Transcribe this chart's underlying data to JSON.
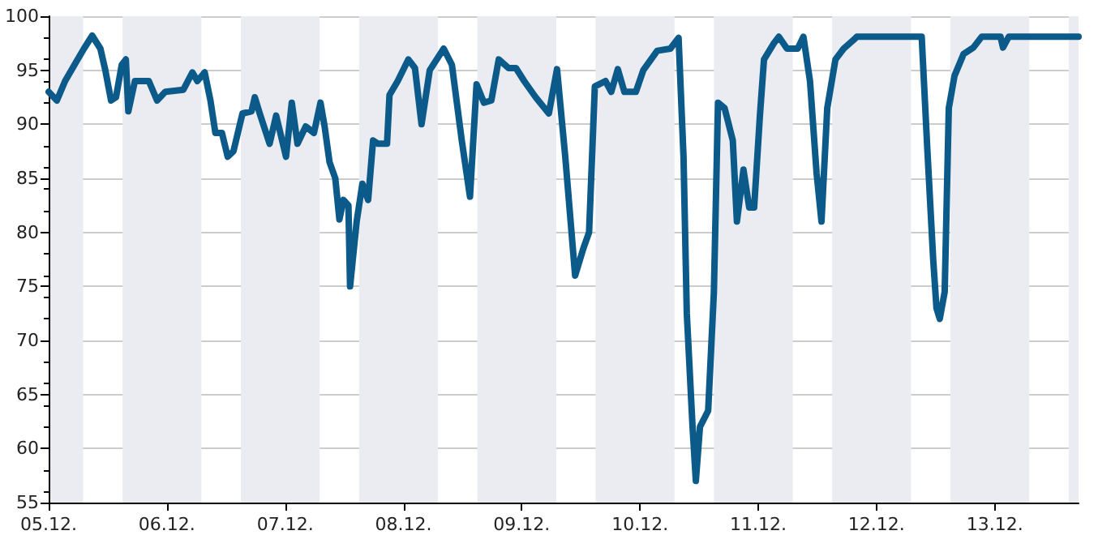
{
  "chart_data": {
    "type": "line",
    "xlim": [
      "--12-05T00:00",
      "--12-13T17:00"
    ],
    "xticks": [
      {
        "value": "--12-05",
        "label": "05.12."
      },
      {
        "value": "--12-06",
        "label": "06.12."
      },
      {
        "value": "--12-07",
        "label": "07.12."
      },
      {
        "value": "--12-08",
        "label": "08.12."
      },
      {
        "value": "--12-09",
        "label": "09.12."
      },
      {
        "value": "--12-10",
        "label": "10.12."
      },
      {
        "value": "--12-11",
        "label": "11.12."
      },
      {
        "value": "--12-12",
        "label": "12.12."
      },
      {
        "value": "--12-13",
        "label": "13.12."
      }
    ],
    "ylim": [
      55,
      100
    ],
    "yticks": [
      55,
      60,
      65,
      70,
      75,
      80,
      85,
      90,
      95,
      100
    ],
    "grid": true,
    "marker": "none",
    "line_style": "solid",
    "bands": [
      {
        "axis": "x",
        "from": "--12-05T00:00",
        "to": "--12-05T07:00",
        "color": "#eaecf2"
      },
      {
        "axis": "x",
        "from": "--12-05T15:00",
        "to": "--12-06T07:00",
        "color": "#eaecf2"
      },
      {
        "axis": "x",
        "from": "--12-06T15:00",
        "to": "--12-07T07:00",
        "color": "#eaecf2"
      },
      {
        "axis": "x",
        "from": "--12-07T15:00",
        "to": "--12-08T07:00",
        "color": "#eaecf2"
      },
      {
        "axis": "x",
        "from": "--12-08T15:00",
        "to": "--12-09T07:00",
        "color": "#eaecf2"
      },
      {
        "axis": "x",
        "from": "--12-09T15:00",
        "to": "--12-10T07:00",
        "color": "#eaecf2"
      },
      {
        "axis": "x",
        "from": "--12-10T15:00",
        "to": "--12-11T07:00",
        "color": "#eaecf2"
      },
      {
        "axis": "x",
        "from": "--12-11T15:00",
        "to": "--12-12T07:00",
        "color": "#eaecf2"
      },
      {
        "axis": "x",
        "from": "--12-12T15:00",
        "to": "--12-13T07:00",
        "color": "#eaecf2"
      },
      {
        "axis": "x",
        "from": "--12-13T15:00",
        "to": "--12-13T17:00",
        "color": "#eaecf2"
      }
    ],
    "x": [
      "--12-05T00:00",
      "--12-05T01:40",
      "--12-05T03:20",
      "--12-05T05:30",
      "--12-05T07:10",
      "--12-05T08:50",
      "--12-05T10:30",
      "--12-05T11:30",
      "--12-05T12:40",
      "--12-05T13:40",
      "--12-05T14:50",
      "--12-05T15:40",
      "--12-05T16:10",
      "--12-05T17:30",
      "--12-05T20:20",
      "--12-05T22:00",
      "--12-05T23:40",
      "--12-06T03:20",
      "--12-06T05:10",
      "--12-06T06:10",
      "--12-06T07:40",
      "--12-06T08:50",
      "--12-06T09:50",
      "--12-06T11:10",
      "--12-06T12:20",
      "--12-06T13:30",
      "--12-06T15:20",
      "--12-06T17:10",
      "--12-06T17:50",
      "--12-06T18:50",
      "--12-06T20:50",
      "--12-06T22:10",
      "--12-07T00:10",
      "--12-07T01:20",
      "--12-07T02:30",
      "--12-07T04:10",
      "--12-07T05:50",
      "--12-07T07:10",
      "--12-07T08:00",
      "--12-07T09:00",
      "--12-07T10:10",
      "--12-07T11:00",
      "--12-07T11:50",
      "--12-07T12:50",
      "--12-07T13:10",
      "--12-07T14:30",
      "--12-07T15:40",
      "--12-07T16:50",
      "--12-07T17:50",
      "--12-07T18:50",
      "--12-07T20:40",
      "--12-07T21:10",
      "--12-07T22:50",
      "--12-08T01:00",
      "--12-08T02:20",
      "--12-08T03:40",
      "--12-08T05:20",
      "--12-08T08:10",
      "--12-08T09:50",
      "--12-08T11:50",
      "--12-08T13:30",
      "--12-08T14:50",
      "--12-08T16:20",
      "--12-08T17:50",
      "--12-08T19:20",
      "--12-08T21:20",
      "--12-08T22:50",
      "--12-09T00:30",
      "--12-09T02:50",
      "--12-09T05:30",
      "--12-09T07:10",
      "--12-09T08:50",
      "--12-09T10:50",
      "--12-09T12:30",
      "--12-09T13:40",
      "--12-09T14:50",
      "--12-09T17:00",
      "--12-09T18:10",
      "--12-09T19:30",
      "--12-09T20:50",
      "--12-09T23:10",
      "--12-10T00:40",
      "--12-10T03:30",
      "--12-10T06:10",
      "--12-10T07:50",
      "--12-10T08:50",
      "--12-10T09:30",
      "--12-10T10:40",
      "--12-10T11:20",
      "--12-10T12:10",
      "--12-10T13:50",
      "--12-10T15:00",
      "--12-10T15:50",
      "--12-10T17:10",
      "--12-10T18:50",
      "--12-10T19:40",
      "--12-10T21:00",
      "--12-10T22:10",
      "--12-10T23:10",
      "--12-11T00:20",
      "--12-11T01:10",
      "--12-11T03:10",
      "--12-11T04:10",
      "--12-11T05:50",
      "--12-11T08:00",
      "--12-11T09:10",
      "--12-11T10:30",
      "--12-11T11:50",
      "--12-11T12:50",
      "--12-11T14:00",
      "--12-11T15:40",
      "--12-11T17:20",
      "--12-11T19:20",
      "--12-11T20:00",
      "--12-12T09:10",
      "--12-12T10:20",
      "--12-12T11:30",
      "--12-12T12:10",
      "--12-12T12:50",
      "--12-12T13:50",
      "--12-12T14:40",
      "--12-12T15:50",
      "--12-12T17:40",
      "--12-12T19:40",
      "--12-12T21:20",
      "--12-13T01:10",
      "--12-13T01:40",
      "--12-13T02:50",
      "--12-13T17:00"
    ],
    "series": [
      {
        "color": "#0b5a8a",
        "values": [
          93,
          92.2,
          94,
          95.7,
          97,
          98.2,
          97,
          95,
          92.2,
          92.5,
          95.5,
          96,
          91.2,
          94,
          94,
          92.2,
          93,
          93.2,
          94.8,
          94,
          94.8,
          92.2,
          89.2,
          89.2,
          87,
          87.5,
          91,
          91.2,
          92.5,
          91,
          88.2,
          90.8,
          87,
          92,
          88.2,
          89.8,
          89.2,
          92,
          89.8,
          86.5,
          85,
          81.2,
          83,
          82.5,
          75,
          81,
          84.5,
          83,
          88.5,
          88.2,
          88.2,
          92.7,
          94,
          96,
          95.2,
          90,
          95,
          97,
          95.5,
          88.5,
          83.3,
          93.7,
          92,
          92.2,
          96,
          95.2,
          95.2,
          94,
          92.5,
          91,
          95.1,
          87,
          76,
          78.5,
          80,
          93.5,
          94,
          93,
          95.1,
          93,
          93,
          95,
          96.8,
          97,
          98,
          87,
          72.5,
          62,
          57,
          62,
          63.5,
          74.5,
          92,
          91.5,
          88.5,
          81,
          85.8,
          82.3,
          82.3,
          90.8,
          96,
          97.5,
          98.1,
          97,
          97,
          98.1,
          94,
          85.5,
          81,
          91.5,
          96,
          97,
          97.8,
          98.1,
          98.1,
          87.5,
          77.5,
          73,
          72,
          74.5,
          91.5,
          94.5,
          96.5,
          97.1,
          98.1,
          98.1,
          97.1,
          98.1,
          98.1
        ]
      }
    ]
  }
}
